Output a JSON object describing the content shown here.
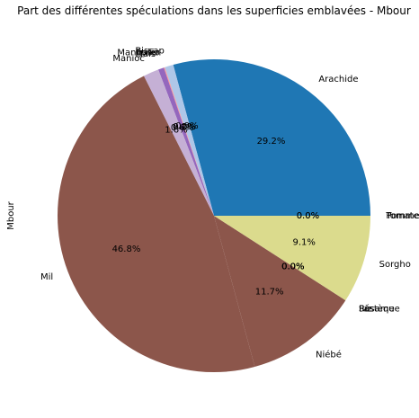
{
  "chart_data": {
    "type": "pie",
    "title": "Part des différentes spéculations dans les superficies emblavées - Mbour",
    "ylabel": "Mbour",
    "start_angle_deg": 0,
    "direction": "counterclockwise",
    "slices": [
      {
        "label": "Arachide",
        "value": 29.2,
        "pct_label": "29.2%",
        "color": "#1f77b4"
      },
      {
        "label": "Bissap",
        "value": 0.9,
        "pct_label": "0.9%",
        "color": "#aec7e8"
      },
      {
        "label": "Fonio",
        "value": 0.0,
        "pct_label": "0.0%",
        "color": "#ffbb78"
      },
      {
        "label": "Manguier",
        "value": 0.1,
        "pct_label": "0.1%",
        "color": "#ff9896"
      },
      {
        "label": "Maïs",
        "value": 0.6,
        "pct_label": "0.6%",
        "color": "#9467bd"
      },
      {
        "label": "Manioc",
        "value": 1.6,
        "pct_label": "1.6%",
        "color": "#c5b0d5"
      },
      {
        "label": "Mil",
        "value": 46.8,
        "pct_label": "46.8%",
        "color": "#8c564b"
      },
      {
        "label": "Niébé",
        "value": 11.7,
        "pct_label": "11.7%",
        "color": "#8c564b"
      },
      {
        "label": "Pastèque",
        "value": 0.0,
        "pct_label": "0.0%",
        "color": "#7f7f7f"
      },
      {
        "label": "Riz",
        "value": 0.0,
        "pct_label": "0.0%",
        "color": "#c7c7c7"
      },
      {
        "label": "Sésame",
        "value": 0.0,
        "pct_label": "0.0%",
        "color": "#bcbd22"
      },
      {
        "label": "Sorgho",
        "value": 9.1,
        "pct_label": "9.1%",
        "color": "#dbdb8d"
      },
      {
        "label": "Tomate",
        "value": 0.0,
        "pct_label": "0.0%",
        "color": "#17becf"
      },
      {
        "label": "Pomme de terre",
        "value": 0.0,
        "pct_label": "0.0%",
        "color": "#9edae5"
      }
    ]
  }
}
